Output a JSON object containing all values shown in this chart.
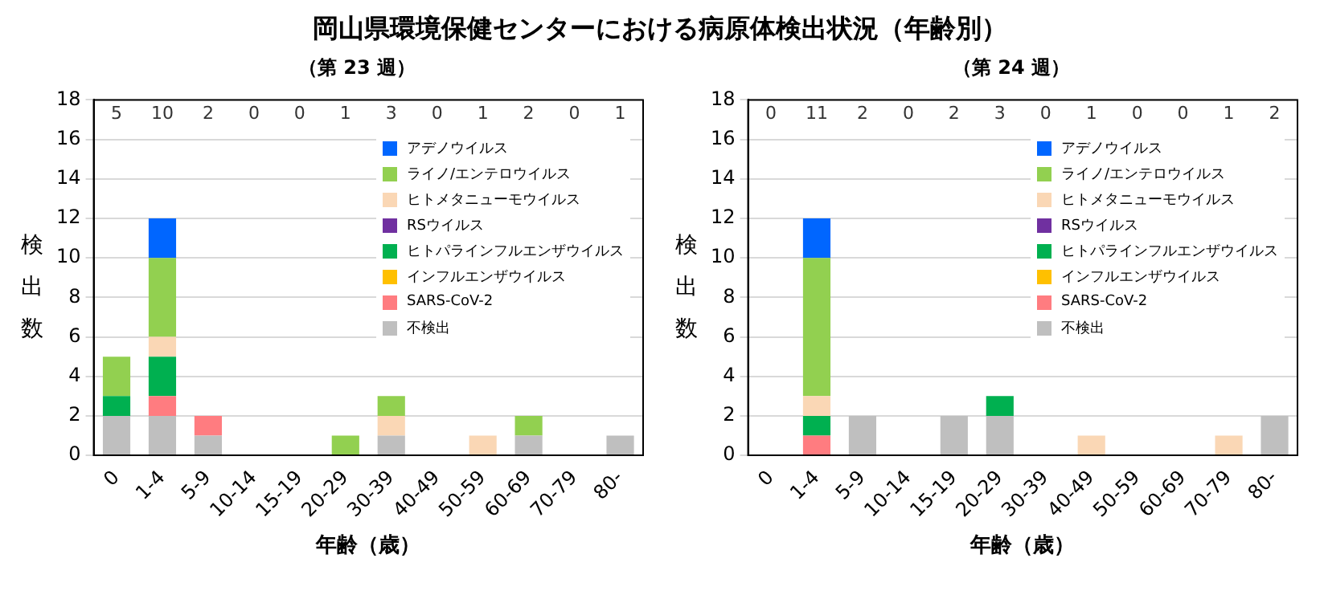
{
  "chart_data": [
    {
      "type": "bar",
      "title": "岡山県環境保健センターにおける病原体検出状況（年齢別）",
      "subtitle": "（第 23 週）",
      "xlabel": "年齢（歳）",
      "ylabel": "検出数",
      "categories": [
        "0",
        "1-4",
        "5-9",
        "10-14",
        "15-19",
        "20-29",
        "30-39",
        "40-49",
        "50-59",
        "60-69",
        "70-79",
        "80-"
      ],
      "stacked": true,
      "ylim": [
        0,
        18
      ],
      "yticks": [
        0,
        2,
        4,
        6,
        8,
        10,
        12,
        14,
        16,
        18
      ],
      "grid": "y",
      "legend": "top right",
      "series": [
        {
          "name": "不検出",
          "color": "#bfbfbf",
          "values": [
            2,
            2,
            1,
            0,
            0,
            0,
            1,
            0,
            0,
            1,
            0,
            1
          ]
        },
        {
          "name": "SARS-CoV-2",
          "color": "#ff7c80",
          "values": [
            0,
            1,
            1,
            0,
            0,
            0,
            0,
            0,
            0,
            0,
            0,
            0
          ]
        },
        {
          "name": "インフルエンザウイルス",
          "color": "#ffc000",
          "values": [
            0,
            0,
            0,
            0,
            0,
            0,
            0,
            0,
            0,
            0,
            0,
            0
          ]
        },
        {
          "name": "ヒトパラインフルエンザウイルス",
          "color": "#00b050",
          "values": [
            1,
            2,
            0,
            0,
            0,
            0,
            0,
            0,
            0,
            0,
            0,
            0
          ]
        },
        {
          "name": "RSウイルス",
          "color": "#7030a0",
          "values": [
            0,
            0,
            0,
            0,
            0,
            0,
            0,
            0,
            0,
            0,
            0,
            0
          ]
        },
        {
          "name": "ヒトメタニューモウイルス",
          "color": "#fad7b5",
          "values": [
            0,
            1,
            0,
            0,
            0,
            0,
            1,
            0,
            1,
            0,
            0,
            0
          ]
        },
        {
          "name": "ライノ/エンテロウイルス",
          "color": "#92d050",
          "values": [
            2,
            4,
            0,
            0,
            0,
            1,
            1,
            0,
            0,
            1,
            0,
            0
          ]
        },
        {
          "name": "アデノウイルス",
          "color": "#0066ff",
          "values": [
            0,
            2,
            0,
            0,
            0,
            0,
            0,
            0,
            0,
            0,
            0,
            0
          ]
        }
      ],
      "annotations": [
        "5",
        "10",
        "2",
        "0",
        "0",
        "1",
        "3",
        "0",
        "1",
        "2",
        "0",
        "1"
      ]
    },
    {
      "type": "bar",
      "subtitle": "（第 24 週）",
      "xlabel": "年齢（歳）",
      "ylabel": "検出数",
      "categories": [
        "0",
        "1-4",
        "5-9",
        "10-14",
        "15-19",
        "20-29",
        "30-39",
        "40-49",
        "50-59",
        "60-69",
        "70-79",
        "80-"
      ],
      "stacked": true,
      "ylim": [
        0,
        18
      ],
      "yticks": [
        0,
        2,
        4,
        6,
        8,
        10,
        12,
        14,
        16,
        18
      ],
      "grid": "y",
      "legend": "top right",
      "series": [
        {
          "name": "不検出",
          "color": "#bfbfbf",
          "values": [
            0,
            0,
            2,
            0,
            2,
            2,
            0,
            0,
            0,
            0,
            0,
            2
          ]
        },
        {
          "name": "SARS-CoV-2",
          "color": "#ff7c80",
          "values": [
            0,
            1,
            0,
            0,
            0,
            0,
            0,
            0,
            0,
            0,
            0,
            0
          ]
        },
        {
          "name": "インフルエンザウイルス",
          "color": "#ffc000",
          "values": [
            0,
            0,
            0,
            0,
            0,
            0,
            0,
            0,
            0,
            0,
            0,
            0
          ]
        },
        {
          "name": "ヒトパラインフルエンザウイルス",
          "color": "#00b050",
          "values": [
            0,
            1,
            0,
            0,
            0,
            1,
            0,
            0,
            0,
            0,
            0,
            0
          ]
        },
        {
          "name": "RSウイルス",
          "color": "#7030a0",
          "values": [
            0,
            0,
            0,
            0,
            0,
            0,
            0,
            0,
            0,
            0,
            0,
            0
          ]
        },
        {
          "name": "ヒトメタニューモウイルス",
          "color": "#fad7b5",
          "values": [
            0,
            1,
            0,
            0,
            0,
            0,
            0,
            1,
            0,
            0,
            1,
            0
          ]
        },
        {
          "name": "ライノ/エンテロウイルス",
          "color": "#92d050",
          "values": [
            0,
            7,
            0,
            0,
            0,
            0,
            0,
            0,
            0,
            0,
            0,
            0
          ]
        },
        {
          "name": "アデノウイルス",
          "color": "#0066ff",
          "values": [
            0,
            2,
            0,
            0,
            0,
            0,
            0,
            0,
            0,
            0,
            0,
            0
          ]
        }
      ],
      "annotations": [
        "0",
        "11",
        "2",
        "0",
        "2",
        "3",
        "0",
        "1",
        "0",
        "0",
        "1",
        "2"
      ]
    }
  ]
}
